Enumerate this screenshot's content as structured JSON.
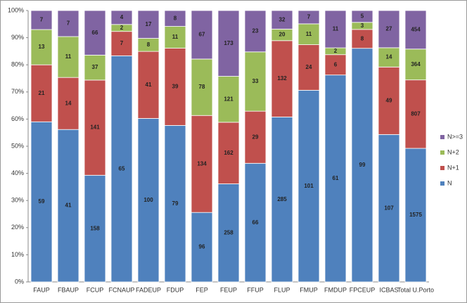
{
  "chart_data": {
    "type": "bar",
    "stacking": "percent",
    "categories": [
      "FAUP",
      "FBAUP",
      "FCUP",
      "FCNAUP",
      "FADEUP",
      "FDUP",
      "FEP",
      "FEUP",
      "FFUP",
      "FLUP",
      "FMUP",
      "FMDUP",
      "FPCEUP",
      "ICBAS",
      "Total U.Porto"
    ],
    "series": [
      {
        "name": "N",
        "color": "#4f81bd",
        "values": [
          59,
          41,
          158,
          65,
          100,
          79,
          96,
          258,
          66,
          285,
          101,
          61,
          99,
          107,
          1575
        ]
      },
      {
        "name": "N+1",
        "color": "#c0504d",
        "values": [
          21,
          14,
          141,
          7,
          41,
          39,
          134,
          162,
          29,
          132,
          24,
          6,
          8,
          49,
          807
        ]
      },
      {
        "name": "N+2",
        "color": "#9bbb59",
        "values": [
          13,
          11,
          37,
          2,
          8,
          11,
          78,
          121,
          33,
          20,
          11,
          2,
          3,
          14,
          364
        ]
      },
      {
        "name": "N>=3",
        "color": "#8064a2",
        "values": [
          7,
          7,
          66,
          4,
          17,
          8,
          67,
          173,
          23,
          32,
          7,
          11,
          5,
          27,
          454
        ]
      }
    ],
    "ylim": [
      0,
      100
    ],
    "yticks": [
      {
        "value": 0,
        "label": "0%"
      },
      {
        "value": 10,
        "label": "10%"
      },
      {
        "value": 20,
        "label": "20%"
      },
      {
        "value": 30,
        "label": "30%"
      },
      {
        "value": 40,
        "label": "40%"
      },
      {
        "value": 50,
        "label": "50%"
      },
      {
        "value": 60,
        "label": "60%"
      },
      {
        "value": 70,
        "label": "70%"
      },
      {
        "value": 80,
        "label": "80%"
      },
      {
        "value": 90,
        "label": "90%"
      },
      {
        "value": 100,
        "label": "100%"
      }
    ],
    "legend": "right"
  }
}
